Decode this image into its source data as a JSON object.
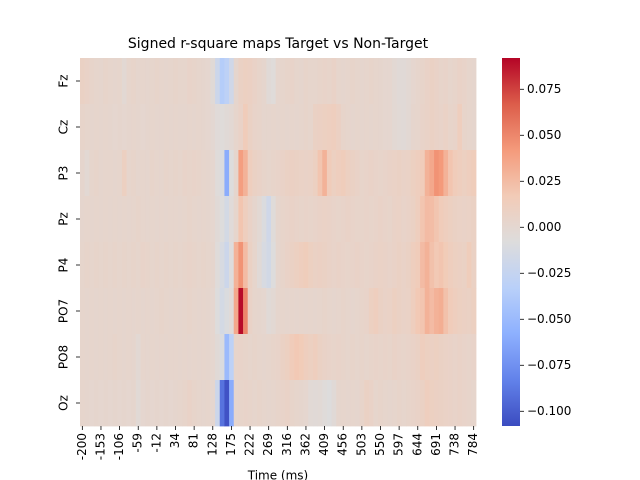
{
  "chart_data": {
    "type": "heatmap",
    "title": "Signed r-square maps Target vs Non-Target",
    "xlabel": "Time (ms)",
    "x": [
      "-200",
      null,
      null,
      null,
      "-153",
      null,
      null,
      null,
      "-106",
      null,
      null,
      null,
      "-59",
      null,
      null,
      null,
      "-12",
      null,
      null,
      null,
      "34",
      null,
      null,
      null,
      "81",
      null,
      null,
      null,
      "128",
      null,
      null,
      null,
      "175",
      null,
      null,
      null,
      "222",
      null,
      null,
      null,
      "269",
      null,
      null,
      null,
      "316",
      null,
      null,
      null,
      "362",
      null,
      null,
      null,
      "409",
      null,
      null,
      null,
      "456",
      null,
      null,
      null,
      "503",
      null,
      null,
      null,
      "550",
      null,
      null,
      null,
      "597",
      null,
      null,
      null,
      "644",
      null,
      null,
      null,
      "691",
      null,
      null,
      null,
      "738",
      null,
      null,
      null,
      "784"
    ],
    "y": [
      "Fz",
      "Cz",
      "P3",
      "Pz",
      "P4",
      "PO7",
      "PO8",
      "Oz"
    ],
    "values": [
      [
        0.008,
        0.006,
        0.004,
        0.003,
        0.002,
        0.004,
        0.003,
        0.002,
        0.003,
        -0.002,
        0.003,
        0.004,
        0.002,
        0.003,
        0.002,
        0.003,
        0.004,
        0.003,
        0.002,
        0.003,
        0.004,
        0.003,
        0.003,
        0.005,
        0.004,
        0.003,
        0.002,
        0.001,
        -0.004,
        -0.02,
        -0.035,
        -0.03,
        -0.018,
        0.002,
        0.008,
        0.01,
        0.009,
        0.006,
        0.004,
        0.002,
        -0.004,
        -0.006,
        0.002,
        0.003,
        0.004,
        0.005,
        0.003,
        0.002,
        0.004,
        0.003,
        0.003,
        0.004,
        0.005,
        0.004,
        0.006,
        0.003,
        0.002,
        0.003,
        0.004,
        0.003,
        0.002,
        0.003,
        0.004,
        0.003,
        0.002,
        0.001,
        0.001,
        -0.002,
        -0.004,
        -0.004,
        -0.002,
        0.001,
        0.003,
        0.004,
        0.006,
        0.008,
        0.006,
        0.004,
        0.005,
        0.003,
        0.004,
        0.006,
        0.005,
        0.003,
        0.002
      ],
      [
        0.004,
        0.003,
        0.002,
        0.003,
        0.002,
        0.003,
        0.002,
        0.001,
        0.002,
        0.001,
        0.002,
        0.003,
        0.002,
        0.001,
        0.002,
        0.003,
        0.002,
        0.002,
        0.003,
        0.002,
        0.003,
        0.002,
        0.002,
        0.003,
        0.002,
        0.003,
        0.002,
        0.001,
        -0.001,
        -0.005,
        -0.006,
        -0.004,
        -0.002,
        0.003,
        0.006,
        0.015,
        0.008,
        0.005,
        0.004,
        0.002,
        0.002,
        0.003,
        0.002,
        0.003,
        0.002,
        0.003,
        0.002,
        0.003,
        0.004,
        0.003,
        0.008,
        0.009,
        0.01,
        0.011,
        0.012,
        0.009,
        0.004,
        0.003,
        0.002,
        0.003,
        0.002,
        0.003,
        0.002,
        0.003,
        0.002,
        0.001,
        0.001,
        -0.002,
        -0.003,
        -0.004,
        -0.002,
        0.002,
        0.003,
        0.005,
        0.006,
        0.008,
        0.006,
        0.005,
        0.007,
        0.004,
        0.005,
        0.012,
        0.004,
        0.003,
        0.002
      ],
      [
        0.002,
        -0.002,
        0.003,
        0.004,
        0.002,
        0.003,
        0.003,
        0.002,
        0.003,
        0.01,
        0.003,
        0.004,
        0.002,
        0.003,
        0.002,
        0.004,
        0.003,
        0.002,
        0.004,
        0.003,
        0.004,
        0.003,
        0.005,
        0.004,
        0.005,
        0.004,
        0.003,
        0.002,
        0.001,
        -0.006,
        -0.01,
        -0.06,
        -0.008,
        0.002,
        0.04,
        0.03,
        0.012,
        0.008,
        0.006,
        0.004,
        0.003,
        0.004,
        0.005,
        0.006,
        0.008,
        0.009,
        0.008,
        0.007,
        0.006,
        0.007,
        0.01,
        0.02,
        0.03,
        0.015,
        0.01,
        0.012,
        0.014,
        0.01,
        0.008,
        0.006,
        0.004,
        0.005,
        0.006,
        0.005,
        0.004,
        0.005,
        0.006,
        0.007,
        0.008,
        0.006,
        0.007,
        0.01,
        0.012,
        0.015,
        0.03,
        0.035,
        0.045,
        0.042,
        0.03,
        0.02,
        0.015,
        0.012,
        0.01,
        0.012,
        0.014
      ],
      [
        0.002,
        0.003,
        0.002,
        0.003,
        0.002,
        0.003,
        0.002,
        0.003,
        0.002,
        0.003,
        0.002,
        0.003,
        0.004,
        0.003,
        0.002,
        0.003,
        0.002,
        0.003,
        0.002,
        0.003,
        0.003,
        0.002,
        0.003,
        0.004,
        0.003,
        0.002,
        0.003,
        0.002,
        0.001,
        -0.004,
        -0.008,
        -0.015,
        -0.005,
        0.003,
        0.02,
        0.012,
        0.006,
        0.002,
        -0.002,
        -0.01,
        -0.018,
        -0.006,
        0.002,
        0.004,
        0.005,
        0.006,
        0.005,
        0.004,
        0.005,
        0.004,
        0.005,
        0.006,
        0.007,
        0.006,
        0.005,
        0.004,
        0.005,
        0.006,
        0.005,
        0.004,
        0.004,
        0.005,
        0.004,
        0.005,
        0.006,
        0.005,
        0.004,
        0.006,
        0.007,
        0.005,
        0.006,
        0.008,
        0.012,
        0.02,
        0.025,
        0.024,
        0.02,
        0.015,
        0.012,
        0.01,
        0.008,
        0.007,
        0.006,
        0.007,
        0.008
      ],
      [
        0.003,
        0.004,
        0.003,
        0.004,
        0.003,
        0.004,
        0.003,
        0.004,
        0.003,
        0.004,
        0.003,
        0.004,
        0.003,
        0.005,
        0.004,
        0.003,
        0.004,
        0.003,
        0.004,
        0.003,
        0.004,
        0.003,
        0.004,
        0.005,
        0.004,
        0.003,
        0.004,
        0.003,
        0.002,
        -0.006,
        -0.012,
        -0.02,
        -0.008,
        0.03,
        0.045,
        0.025,
        0.008,
        0.003,
        -0.004,
        -0.012,
        -0.016,
        -0.008,
        0.002,
        0.004,
        0.006,
        0.008,
        0.01,
        0.012,
        0.014,
        0.01,
        0.008,
        0.009,
        0.008,
        0.006,
        0.005,
        0.006,
        0.005,
        0.004,
        0.005,
        0.006,
        0.005,
        0.004,
        0.005,
        0.006,
        0.007,
        0.006,
        0.005,
        0.006,
        0.008,
        0.006,
        0.008,
        0.012,
        0.015,
        0.025,
        0.03,
        0.022,
        0.018,
        0.02,
        0.016,
        0.012,
        0.01,
        0.009,
        0.008,
        0.014,
        0.008
      ],
      [
        0.003,
        0.002,
        0.003,
        0.002,
        0.003,
        0.002,
        0.003,
        0.002,
        0.003,
        0.002,
        0.003,
        0.002,
        0.003,
        0.002,
        0.003,
        0.002,
        0.003,
        0.004,
        0.003,
        0.002,
        0.003,
        0.002,
        0.003,
        0.004,
        0.003,
        0.002,
        0.003,
        0.002,
        0.001,
        -0.008,
        -0.015,
        -0.01,
        -0.005,
        0.035,
        0.09,
        0.05,
        0.006,
        0.003,
        0.002,
        0.001,
        -0.004,
        -0.002,
        0.002,
        0.003,
        0.002,
        0.003,
        0.002,
        0.003,
        0.002,
        0.003,
        0.002,
        0.003,
        0.004,
        0.003,
        0.002,
        0.003,
        0.004,
        0.003,
        0.002,
        0.003,
        0.004,
        0.005,
        0.01,
        0.012,
        0.008,
        0.006,
        0.007,
        0.01,
        0.008,
        0.006,
        0.007,
        0.012,
        0.018,
        0.02,
        0.03,
        0.025,
        0.03,
        0.032,
        0.022,
        0.015,
        0.012,
        0.01,
        0.009,
        0.008,
        0.01
      ],
      [
        0.003,
        0.002,
        0.003,
        0.002,
        0.003,
        0.002,
        0.003,
        0.004,
        0.003,
        0.002,
        0.003,
        0.002,
        -0.002,
        0.003,
        0.002,
        0.003,
        0.002,
        0.003,
        0.002,
        0.003,
        0.003,
        0.002,
        0.003,
        0.002,
        0.003,
        0.002,
        0.003,
        0.002,
        0.001,
        -0.004,
        -0.01,
        -0.05,
        -0.03,
        0.004,
        0.005,
        0.004,
        0.003,
        0.004,
        0.003,
        0.002,
        0.003,
        0.004,
        0.005,
        0.008,
        0.01,
        0.015,
        0.018,
        0.016,
        0.012,
        0.01,
        0.012,
        0.008,
        0.006,
        0.005,
        0.004,
        0.005,
        0.004,
        0.003,
        0.004,
        0.003,
        0.004,
        0.003,
        0.004,
        0.005,
        0.004,
        0.005,
        0.004,
        0.006,
        0.005,
        0.004,
        0.005,
        0.006,
        0.008,
        0.012,
        0.01,
        0.009,
        0.01,
        0.008,
        0.007,
        0.006,
        0.005,
        0.006,
        0.005,
        0.004,
        0.005
      ],
      [
        0.003,
        0.002,
        0.001,
        0.002,
        0.001,
        0.002,
        0.001,
        0.002,
        0.001,
        0.002,
        0.001,
        0.002,
        -0.003,
        0.001,
        0.002,
        0.001,
        0.002,
        0.001,
        0.002,
        0.001,
        0.002,
        0.003,
        0.004,
        0.006,
        0.004,
        0.003,
        0.002,
        0.003,
        0.001,
        -0.02,
        -0.09,
        -0.105,
        -0.06,
        0.003,
        0.004,
        0.005,
        0.004,
        0.003,
        0.004,
        0.003,
        0.002,
        0.003,
        0.004,
        0.005,
        0.006,
        0.004,
        0.003,
        0.002,
        0.001,
        -0.003,
        -0.004,
        -0.003,
        -0.006,
        -0.008,
        -0.004,
        0.002,
        0.003,
        0.002,
        0.003,
        0.002,
        0.004,
        0.008,
        0.006,
        0.003,
        0.004,
        0.003,
        0.002,
        0.003,
        0.004,
        0.003,
        0.004,
        0.005,
        0.006,
        0.008,
        0.012,
        0.01,
        0.009,
        0.008,
        0.007,
        0.006,
        0.005,
        0.006,
        0.005,
        0.004,
        0.003
      ]
    ],
    "colormap": "coolwarm",
    "clim": [
      -0.108,
      0.092
    ],
    "colorbar_ticks": [
      {
        "value": -0.1,
        "label": "−0.100"
      },
      {
        "value": -0.075,
        "label": "−0.075"
      },
      {
        "value": -0.05,
        "label": "−0.050"
      },
      {
        "value": -0.025,
        "label": "−0.025"
      },
      {
        "value": 0,
        "label": "0.000"
      },
      {
        "value": 0.025,
        "label": "0.025"
      },
      {
        "value": 0.05,
        "label": "0.050"
      },
      {
        "value": 0.075,
        "label": "0.075"
      }
    ]
  }
}
